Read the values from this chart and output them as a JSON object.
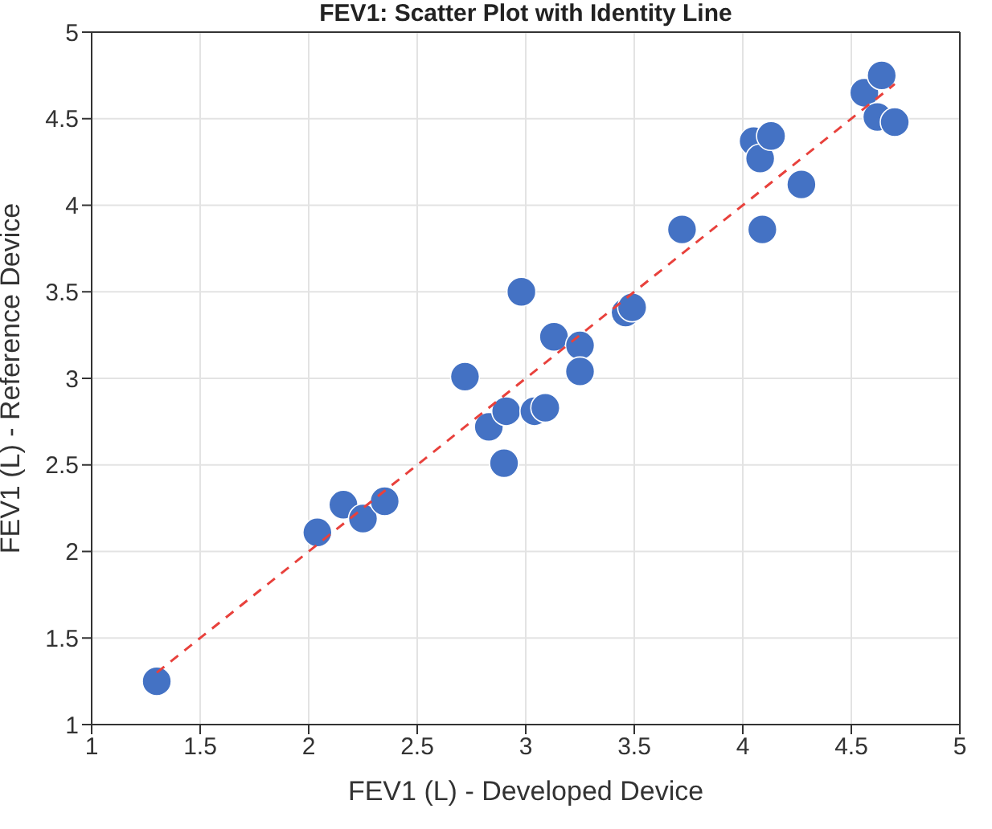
{
  "chart_data": {
    "type": "scatter",
    "title": "FEV1: Scatter Plot with Identity Line",
    "xlabel": "FEV1 (L) - Developed Device",
    "ylabel": "FEV1 (L) - Reference Device",
    "series": [
      {
        "type": "scatter",
        "color": "#4472c4",
        "marker": "circle",
        "x": [
          1.3,
          2.04,
          2.16,
          2.25,
          2.35,
          2.72,
          2.83,
          2.9,
          2.91,
          2.98,
          3.04,
          3.09,
          3.13,
          3.25,
          3.25,
          3.46,
          3.49,
          3.72,
          4.05,
          4.08,
          4.09,
          4.13,
          4.27,
          4.56,
          4.64,
          4.62,
          4.7
        ],
        "values": [
          1.25,
          2.11,
          2.27,
          2.19,
          2.29,
          3.01,
          2.72,
          2.51,
          2.81,
          3.5,
          2.81,
          2.83,
          3.24,
          3.19,
          3.04,
          3.38,
          3.41,
          3.86,
          4.37,
          4.27,
          3.86,
          4.4,
          4.12,
          4.65,
          4.75,
          4.51,
          4.48
        ]
      },
      {
        "type": "line",
        "color": "#e8413c",
        "marker": "none",
        "line_style": "dashed",
        "x": [
          1.3,
          4.7
        ],
        "values": [
          1.3,
          4.7
        ]
      }
    ],
    "xlim": [
      1,
      5
    ],
    "xticks": [
      1,
      1.5,
      2,
      2.5,
      3,
      3.5,
      4,
      4.5,
      5
    ],
    "ylim": [
      1,
      5
    ],
    "yticks": [
      1,
      1.5,
      2,
      2.5,
      3,
      3.5,
      4,
      4.5,
      5
    ],
    "grid": true
  }
}
